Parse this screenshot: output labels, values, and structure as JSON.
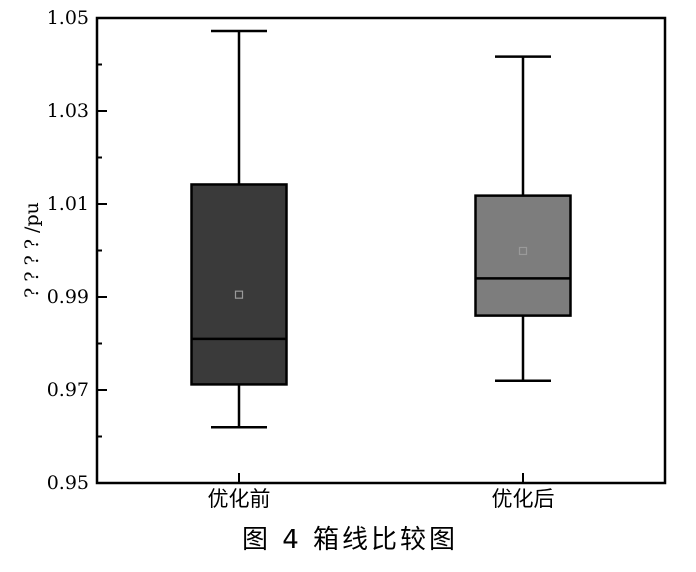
{
  "chart_data": {
    "type": "box",
    "ylabel": "? ? ? ? /pu",
    "ylim": [
      0.95,
      1.05
    ],
    "yticks": [
      "0.95",
      "0.97",
      "0.99",
      "1.01",
      "1.03",
      "1.05"
    ],
    "ytick_values": [
      0.95,
      0.97,
      0.99,
      1.01,
      1.03,
      1.05
    ],
    "categories": [
      "优化前",
      "优化后"
    ],
    "boxes": [
      {
        "min": 0.962,
        "q1": 0.9712,
        "median": 0.981,
        "q3": 1.0142,
        "max": 1.0472,
        "mean": 0.9905,
        "color": "#3a3a3a"
      },
      {
        "min": 0.972,
        "q1": 0.986,
        "median": 0.994,
        "q3": 1.0118,
        "max": 1.0417,
        "mean": 0.9999,
        "color": "#7d7d7d"
      }
    ],
    "grid": false
  },
  "caption": "图 4  箱线比较图"
}
